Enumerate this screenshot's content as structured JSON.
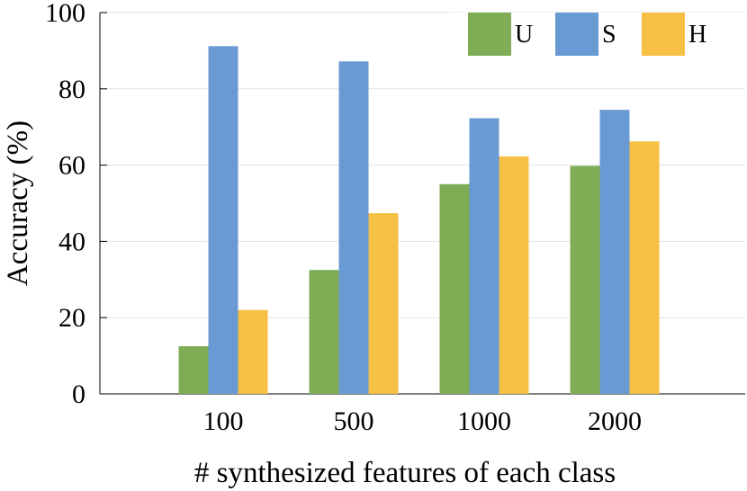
{
  "chart_data": {
    "type": "bar",
    "title": "",
    "xlabel": "# synthesized features of each class",
    "ylabel": "Accuracy (%)",
    "categories": [
      "100",
      "500",
      "1000",
      "2000"
    ],
    "ylim": [
      0,
      100
    ],
    "yticks": [
      0,
      20,
      40,
      60,
      80,
      100
    ],
    "grid": true,
    "legend_position": "top-right",
    "series": [
      {
        "name": "U",
        "color": "#7fad55",
        "values": [
          12.5,
          32.5,
          55.0,
          59.8
        ]
      },
      {
        "name": "S",
        "color": "#6a9ad3",
        "values": [
          91.2,
          87.2,
          72.3,
          74.5
        ]
      },
      {
        "name": "H",
        "color": "#f5c044",
        "values": [
          22.0,
          47.4,
          62.3,
          66.2
        ]
      }
    ]
  }
}
